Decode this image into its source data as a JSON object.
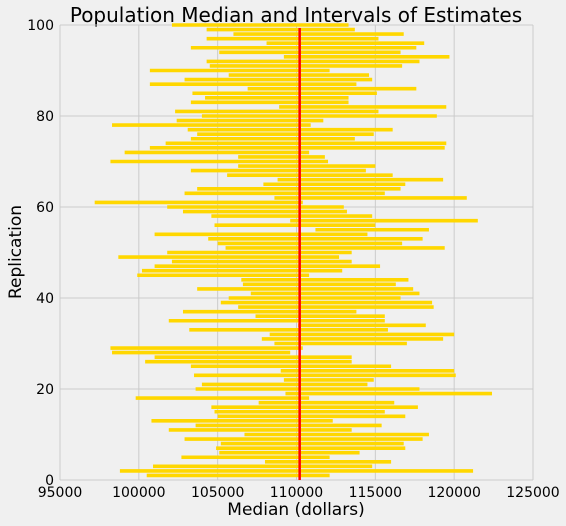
{
  "chart_data": {
    "type": "bar",
    "orientation": "horizontal-interval",
    "title": "Population Median and Intervals of Estimates",
    "xlabel": "Median (dollars)",
    "ylabel": "Replication",
    "xlim": [
      95000,
      125000
    ],
    "ylim": [
      0,
      100
    ],
    "x_ticks": [
      "95000",
      "100000",
      "105000",
      "110000",
      "115000",
      "120000",
      "125000"
    ],
    "y_ticks": [
      "0",
      "20",
      "40",
      "60",
      "80",
      "100"
    ],
    "grid": true,
    "population_median": 110200,
    "reference_line_color": "#ff0000",
    "bar_color": "#ffd700",
    "intervals": [
      [
        100500,
        112100
      ],
      [
        98800,
        121200
      ],
      [
        100900,
        114800
      ],
      [
        108000,
        116000
      ],
      [
        102700,
        112100
      ],
      [
        105100,
        114000
      ],
      [
        104900,
        116900
      ],
      [
        105200,
        116800
      ],
      [
        102900,
        118000
      ],
      [
        106700,
        118400
      ],
      [
        101900,
        113500
      ],
      [
        103600,
        115400
      ],
      [
        100800,
        112300
      ],
      [
        105000,
        116900
      ],
      [
        104800,
        115600
      ],
      [
        104600,
        117700
      ],
      [
        107600,
        116200
      ],
      [
        99800,
        110800
      ],
      [
        109300,
        122400
      ],
      [
        103600,
        117800
      ],
      [
        104000,
        114500
      ],
      [
        109200,
        114900
      ],
      [
        103500,
        120100
      ],
      [
        109000,
        120000
      ],
      [
        103300,
        116000
      ],
      [
        100400,
        113500
      ],
      [
        101000,
        113500
      ],
      [
        98300,
        109600
      ],
      [
        98200,
        110400
      ],
      [
        108600,
        117000
      ],
      [
        107800,
        119300
      ],
      [
        108300,
        120000
      ],
      [
        103200,
        115800
      ],
      [
        110100,
        118200
      ],
      [
        101900,
        115600
      ],
      [
        107400,
        115600
      ],
      [
        102800,
        113800
      ],
      [
        106300,
        118700
      ],
      [
        105200,
        118600
      ],
      [
        105700,
        116600
      ],
      [
        107100,
        117800
      ],
      [
        103700,
        117400
      ],
      [
        106600,
        116300
      ],
      [
        106500,
        117100
      ],
      [
        99900,
        110800
      ],
      [
        100200,
        112900
      ],
      [
        101000,
        115300
      ],
      [
        102100,
        113500
      ],
      [
        98700,
        112700
      ],
      [
        101800,
        113500
      ],
      [
        105500,
        119400
      ],
      [
        105000,
        116700
      ],
      [
        104400,
        118000
      ],
      [
        101000,
        114500
      ],
      [
        111200,
        118400
      ],
      [
        104800,
        115000
      ],
      [
        109600,
        121500
      ],
      [
        104600,
        114800
      ],
      [
        102800,
        113200
      ],
      [
        101800,
        113000
      ],
      [
        97200,
        110400
      ],
      [
        108600,
        120800
      ],
      [
        102900,
        115600
      ],
      [
        103700,
        116600
      ],
      [
        107900,
        116900
      ],
      [
        108800,
        119300
      ],
      [
        105600,
        116100
      ],
      [
        103300,
        114400
      ],
      [
        106300,
        115000
      ],
      [
        98200,
        112000
      ],
      [
        106300,
        111800
      ],
      [
        99100,
        110800
      ],
      [
        100700,
        119400
      ],
      [
        101700,
        119500
      ],
      [
        103300,
        113700
      ],
      [
        103700,
        114900
      ],
      [
        103100,
        116100
      ],
      [
        98300,
        110900
      ],
      [
        102400,
        111700
      ],
      [
        104000,
        118900
      ],
      [
        102300,
        115200
      ],
      [
        108900,
        119500
      ],
      [
        103300,
        113300
      ],
      [
        104200,
        113300
      ],
      [
        103400,
        115100
      ],
      [
        106900,
        117600
      ],
      [
        100700,
        113800
      ],
      [
        102900,
        114800
      ],
      [
        105700,
        114600
      ],
      [
        100700,
        112100
      ],
      [
        104500,
        116700
      ],
      [
        104300,
        117800
      ],
      [
        109200,
        119700
      ],
      [
        105100,
        116600
      ],
      [
        103300,
        117600
      ],
      [
        108100,
        118100
      ],
      [
        104300,
        115200
      ],
      [
        106000,
        116800
      ],
      [
        104300,
        113700
      ],
      [
        102100,
        113300
      ]
    ]
  }
}
